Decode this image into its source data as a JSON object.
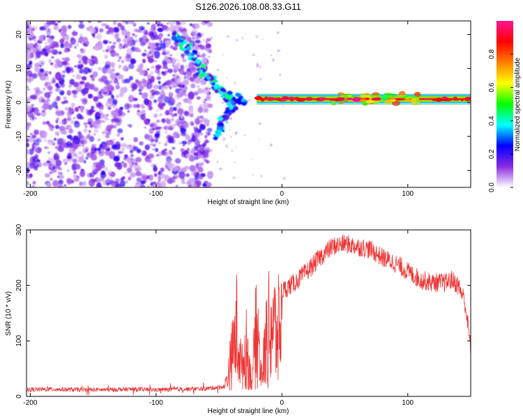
{
  "title": "S126.2026.108.08.33.G11",
  "chart_data": [
    {
      "type": "heatmap",
      "name": "spectrogram",
      "title": "S126.2026.108.08.33.G11",
      "xlabel": "Height of straight line (km)",
      "ylabel": "Frequency (Hz)",
      "xlim": [
        -203,
        150
      ],
      "ylim": [
        -25,
        24
      ],
      "xticks": [
        -200,
        -100,
        0,
        100
      ],
      "yticks": [
        -20,
        -10,
        0,
        10,
        20
      ],
      "colorbar": {
        "label": "Normalized spectral amplitude",
        "range": [
          0,
          1
        ],
        "ticks": [
          0.0,
          0.2,
          0.4,
          0.6,
          0.8
        ],
        "colors": [
          "#ffffff",
          "#8a2be2",
          "#0000ff",
          "#00ffff",
          "#00ff00",
          "#ffff00",
          "#ff7f00",
          "#ff0000",
          "#ff1493"
        ]
      },
      "features": [
        {
          "desc": "scattered noise",
          "x_range": [
            -203,
            -57
          ],
          "y_range": [
            -25,
            24
          ],
          "amplitude": 0.15
        },
        {
          "desc": "descending branch",
          "points": [
            [
              -85,
              20
            ],
            [
              -72,
              14
            ],
            [
              -60,
              8
            ],
            [
              -45,
              2
            ],
            [
              -30,
              1
            ]
          ],
          "amplitude": 0.4
        },
        {
          "desc": "lower branch",
          "points": [
            [
              -52,
              -10
            ],
            [
              -45,
              -4
            ],
            [
              -38,
              0
            ]
          ],
          "amplitude": 0.35
        },
        {
          "desc": "main trace",
          "x_range": [
            -20,
            150
          ],
          "y_values": [
            0.5,
            1.5
          ],
          "amplitude": 0.9
        }
      ]
    },
    {
      "type": "line",
      "name": "snr",
      "title": "",
      "xlabel": "Height of straight line (km)",
      "ylabel": "SNR (10 * v/v)",
      "xlim": [
        -203,
        150
      ],
      "ylim": [
        0,
        300
      ],
      "xticks": [
        -200,
        -100,
        0,
        100
      ],
      "yticks": [
        0,
        100,
        200,
        300
      ],
      "color": "#ee3333",
      "series": [
        {
          "name": "SNR",
          "x": [
            -203,
            -180,
            -160,
            -140,
            -120,
            -100,
            -80,
            -60,
            -45,
            -40,
            -36,
            -32,
            -28,
            -24,
            -20,
            -16,
            -12,
            -8,
            -4,
            0,
            10,
            20,
            30,
            40,
            50,
            60,
            70,
            80,
            90,
            100,
            110,
            120,
            130,
            135,
            140,
            145,
            148,
            150
          ],
          "y": [
            12,
            13,
            12,
            12,
            13,
            12,
            13,
            14,
            18,
            90,
            170,
            60,
            120,
            25,
            180,
            40,
            150,
            190,
            150,
            190,
            205,
            225,
            250,
            270,
            275,
            270,
            265,
            250,
            240,
            225,
            210,
            205,
            205,
            210,
            200,
            175,
            125,
            85
          ]
        }
      ]
    }
  ]
}
